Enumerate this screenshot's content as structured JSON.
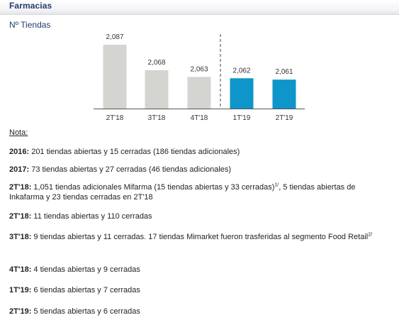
{
  "section": {
    "title": "Farmacias"
  },
  "chart_data": {
    "type": "bar",
    "title": "Nº Tiendas",
    "categories": [
      "2T'18",
      "3T'18",
      "4T'18",
      "1T'19",
      "2T'19"
    ],
    "values": [
      2087,
      2068,
      2063,
      2062,
      2061
    ],
    "value_labels": [
      "2,087",
      "2,068",
      "2,063",
      "2,062",
      "2,061"
    ],
    "colors": [
      "#d4d4d0",
      "#d4d4d0",
      "#d4d4d0",
      "#0e95c9",
      "#0e95c9"
    ],
    "divider_after_index": 2,
    "xlabel": "",
    "ylabel": "",
    "grid": false,
    "legend": "none"
  },
  "notes": {
    "heading": "Nota:",
    "items": [
      {
        "year": "2016:",
        "text": " 201 tiendas abiertas y 15 cerradas (186 tiendas adicionales)"
      },
      {
        "year": "2017:",
        "text": " 73 tiendas abiertas y 27 cerradas (46 tiendas adicionales)"
      },
      {
        "year": "2T'18:",
        "text": " 1,051 tiendas adicionales Mifarma (15 tiendas abiertas y 33 cerradas)",
        "sup": "1/",
        "text2": ", 5 tiendas abiertas de Inkafarma y 23 tiendas cerradas en 2T'18"
      },
      {
        "year": "2T'18:",
        "text": " 11 tiendas abiertas y 110 cerradas"
      },
      {
        "year": "3T'18:",
        "text": " 9 tiendas abiertas y 11 cerradas. 17 tiendas Mimarket fueron trasferidas al segmento Food Retail",
        "sup": "2/"
      },
      {
        "year": "4T'18:",
        "text": " 4 tiendas abiertas y 9 cerradas"
      },
      {
        "year": "1T'19:",
        "text": " 6 tiendas abiertas y 7 cerradas"
      },
      {
        "year": "2T'19:",
        "text": " 5 tiendas abiertas y 6 cerradas"
      }
    ]
  }
}
